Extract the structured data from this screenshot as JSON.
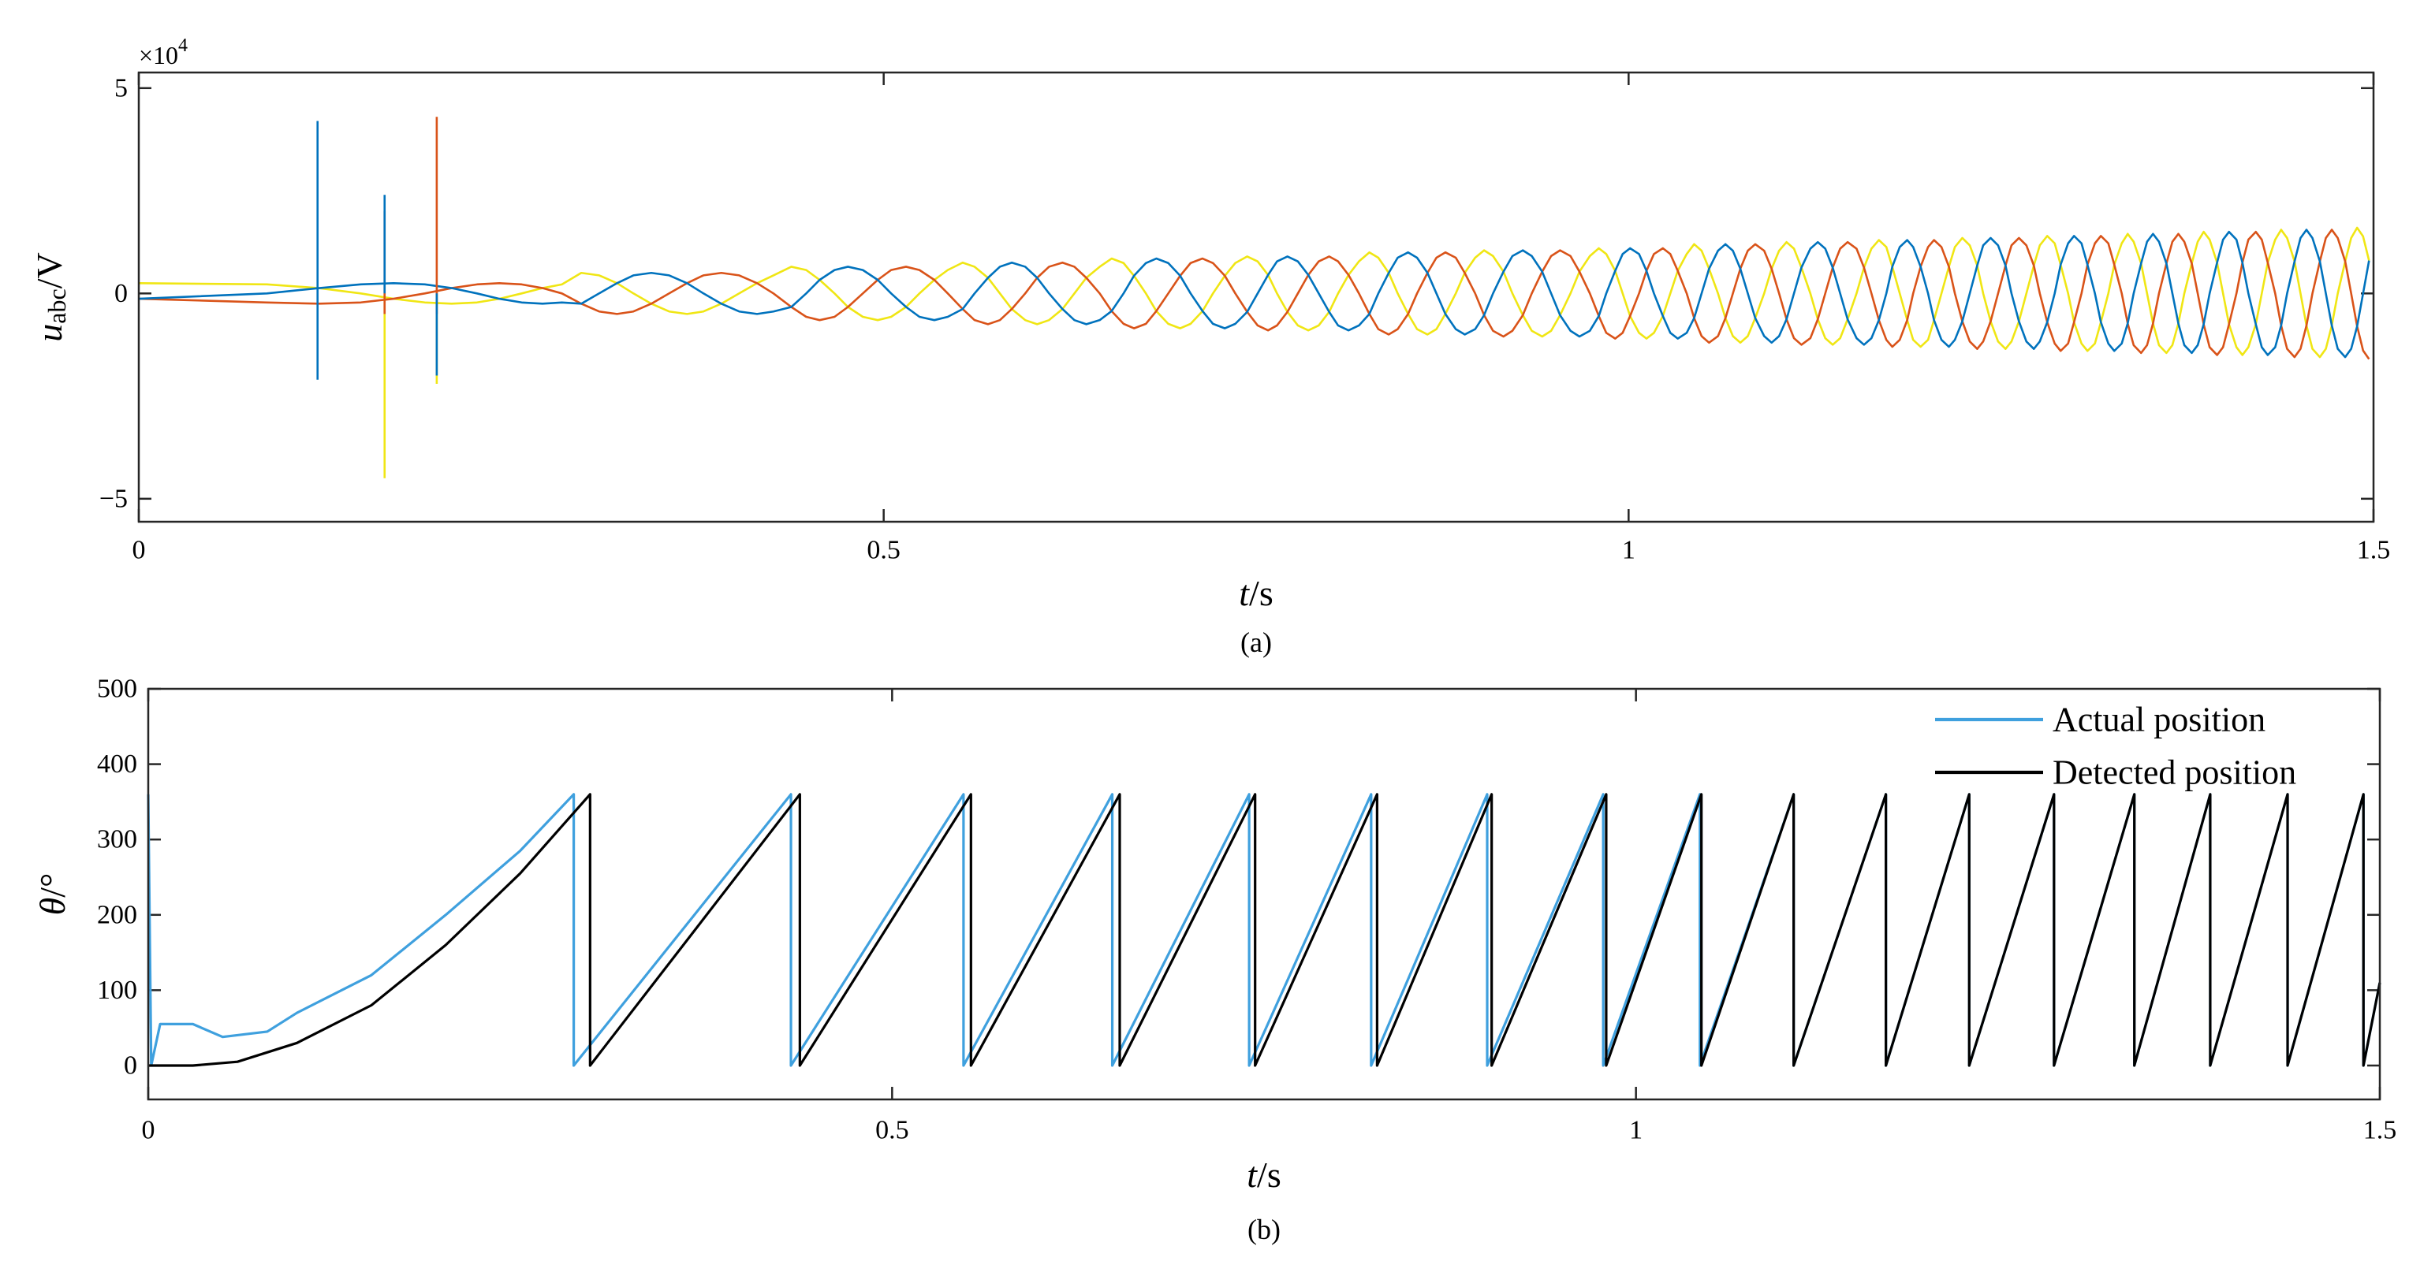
{
  "chart_data": [
    {
      "type": "line",
      "x": [
        0,
        0.086,
        0.121,
        0.149,
        0.171,
        0.192,
        0.21,
        0.227,
        0.242,
        0.257,
        0.271,
        0.284,
        0.297,
        0.309,
        0.321,
        0.332,
        0.344,
        0.356,
        0.368,
        0.379,
        0.391,
        0.403,
        0.415,
        0.426,
        0.438,
        0.448,
        0.457,
        0.467,
        0.476,
        0.486,
        0.496,
        0.505,
        0.515,
        0.524,
        0.534,
        0.543,
        0.553,
        0.561,
        0.57,
        0.578,
        0.586,
        0.595,
        0.603,
        0.611,
        0.62,
        0.628,
        0.636,
        0.645,
        0.653,
        0.661,
        0.668,
        0.676,
        0.683,
        0.691,
        0.699,
        0.706,
        0.714,
        0.721,
        0.729,
        0.736,
        0.744,
        0.751,
        0.758,
        0.764,
        0.771,
        0.778,
        0.785,
        0.792,
        0.799,
        0.805,
        0.812,
        0.819,
        0.826,
        0.832,
        0.839,
        0.845,
        0.852,
        0.858,
        0.865,
        0.871,
        0.877,
        0.884,
        0.89,
        0.897,
        0.903,
        0.909,
        0.916,
        0.922,
        0.929,
        0.935,
        0.942,
        0.948,
        0.954,
        0.961,
        0.967,
        0.974,
        0.98,
        0.985,
        0.991,
        0.996,
        1.001,
        1.007,
        1.012,
        1.017,
        1.023,
        1.028,
        1.033,
        1.039,
        1.044,
        1.049,
        1.054,
        1.06,
        1.065,
        1.07,
        1.075,
        1.08,
        1.085,
        1.091,
        1.096,
        1.101,
        1.106,
        1.111,
        1.116,
        1.122,
        1.127,
        1.132,
        1.137,
        1.142,
        1.147,
        1.153,
        1.158,
        1.163,
        1.168,
        1.173,
        1.177,
        1.182,
        1.187,
        1.191,
        1.196,
        1.201,
        1.205,
        1.21,
        1.215,
        1.219,
        1.224,
        1.229,
        1.234,
        1.238,
        1.243,
        1.248,
        1.253,
        1.257,
        1.262,
        1.267,
        1.272,
        1.276,
        1.281,
        1.286,
        1.29,
        1.295,
        1.299,
        1.304,
        1.308,
        1.313,
        1.317,
        1.322,
        1.326,
        1.331,
        1.335,
        1.339,
        1.344,
        1.348,
        1.352,
        1.356,
        1.361,
        1.365,
        1.369,
        1.373,
        1.378,
        1.382,
        1.386,
        1.39,
        1.395,
        1.399,
        1.403,
        1.408,
        1.412,
        1.416,
        1.421,
        1.425,
        1.429,
        1.434,
        1.438,
        1.442,
        1.447,
        1.451,
        1.455,
        1.459,
        1.464,
        1.468,
        1.472,
        1.476,
        1.481,
        1.485,
        1.489,
        1.493,
        1.497
      ],
      "xlim": [
        0,
        1.5
      ],
      "ylim": [
        -5.56,
        5.38
      ],
      "xticks": [
        0,
        0.5,
        1,
        1.5
      ],
      "yticks": [
        {
          "value": -5,
          "label": "−5"
        },
        0,
        5
      ],
      "y_multiplier": {
        "base": "×10",
        "exponent": "4"
      },
      "ylabel": {
        "symbol": "u",
        "subscript": "abc",
        "unit": "/V"
      },
      "xlabel": {
        "symbol": "t",
        "unit": "/s"
      },
      "caption": "(a)",
      "series": [
        {
          "color": "#f0e614",
          "values": [
            0.25,
            0.22,
            0.13,
            0,
            -0.13,
            -0.22,
            -0.25,
            -0.22,
            -0.13,
            0,
            0.13,
            0.22,
            0.5,
            0.44,
            0.25,
            0,
            -0.25,
            -0.44,
            -0.5,
            -0.44,
            -0.25,
            0,
            0.25,
            0.44,
            0.65,
            0.57,
            0.33,
            0,
            -0.33,
            -0.57,
            -0.65,
            -0.57,
            -0.33,
            0,
            0.33,
            0.57,
            0.75,
            0.65,
            0.38,
            0,
            -0.38,
            -0.65,
            -0.75,
            -0.65,
            -0.38,
            0,
            0.38,
            0.65,
            0.85,
            0.74,
            0.43,
            0,
            -0.43,
            -0.74,
            -0.85,
            -0.74,
            -0.43,
            0,
            0.43,
            0.74,
            0.9,
            0.78,
            0.45,
            0,
            -0.45,
            -0.78,
            -0.9,
            -0.78,
            -0.45,
            0,
            0.45,
            0.78,
            1,
            0.87,
            0.5,
            0,
            -0.5,
            -0.87,
            -1,
            -0.87,
            -0.5,
            0,
            0.5,
            0.87,
            1.05,
            0.91,
            0.53,
            0,
            -0.53,
            -0.91,
            -1.05,
            -0.91,
            -0.53,
            0,
            0.53,
            0.91,
            1.1,
            0.96,
            0.55,
            0,
            -0.55,
            -0.96,
            -1.1,
            -0.96,
            -0.55,
            0,
            0.55,
            0.96,
            1.2,
            1.04,
            0.6,
            0,
            -0.6,
            -1.04,
            -1.2,
            -1.04,
            -0.6,
            0,
            0.6,
            1.04,
            1.25,
            1.09,
            0.63,
            0,
            -0.63,
            -1.09,
            -1.25,
            -1.09,
            -0.63,
            0,
            0.63,
            1.09,
            1.3,
            1.13,
            0.65,
            0,
            -0.65,
            -1.13,
            -1.3,
            -1.13,
            -0.65,
            0,
            0.65,
            1.13,
            1.35,
            1.17,
            0.68,
            0,
            -0.68,
            -1.17,
            -1.35,
            -1.17,
            -0.68,
            0,
            0.68,
            1.17,
            1.4,
            1.22,
            0.7,
            0,
            -0.7,
            -1.22,
            -1.4,
            -1.22,
            -0.7,
            0,
            0.7,
            1.22,
            1.45,
            1.26,
            0.73,
            0,
            -0.73,
            -1.26,
            -1.45,
            -1.26,
            -0.73,
            0,
            0.73,
            1.26,
            1.5,
            1.31,
            0.75,
            0,
            -0.75,
            -1.31,
            -1.5,
            -1.31,
            -0.75,
            0,
            0.75,
            1.31,
            1.55,
            1.35,
            0.78,
            0,
            -0.78,
            -1.35,
            -1.55,
            -1.35,
            -0.78,
            0,
            0.78,
            1.35,
            1.6,
            1.39,
            0.8
          ]
        },
        {
          "color": "#d95319",
          "values": [
            -0.13,
            -0.22,
            -0.25,
            -0.22,
            -0.13,
            0,
            0.13,
            0.22,
            0.25,
            0.22,
            0.13,
            0,
            -0.25,
            -0.44,
            -0.5,
            -0.44,
            -0.25,
            0,
            0.25,
            0.44,
            0.5,
            0.44,
            0.25,
            0,
            -0.33,
            -0.57,
            -0.65,
            -0.57,
            -0.33,
            0,
            0.33,
            0.57,
            0.65,
            0.57,
            0.33,
            0,
            -0.38,
            -0.65,
            -0.75,
            -0.65,
            -0.38,
            0,
            0.38,
            0.65,
            0.75,
            0.65,
            0.38,
            0,
            -0.43,
            -0.74,
            -0.85,
            -0.74,
            -0.43,
            0,
            0.43,
            0.74,
            0.85,
            0.74,
            0.43,
            0,
            -0.45,
            -0.78,
            -0.9,
            -0.78,
            -0.45,
            0,
            0.45,
            0.78,
            0.9,
            0.78,
            0.45,
            0,
            -0.5,
            -0.87,
            -1,
            -0.87,
            -0.5,
            0,
            0.5,
            0.87,
            1,
            0.87,
            0.5,
            0,
            -0.53,
            -0.91,
            -1.05,
            -0.91,
            -0.53,
            0,
            0.53,
            0.91,
            1.05,
            0.91,
            0.53,
            0,
            -0.55,
            -0.96,
            -1.1,
            -0.96,
            -0.55,
            0,
            0.55,
            0.96,
            1.1,
            0.96,
            0.55,
            0,
            -0.6,
            -1.04,
            -1.2,
            -1.04,
            -0.6,
            0,
            0.6,
            1.04,
            1.2,
            1.04,
            0.6,
            0,
            -0.63,
            -1.09,
            -1.25,
            -1.09,
            -0.63,
            0,
            0.63,
            1.09,
            1.25,
            1.09,
            0.63,
            0,
            -0.65,
            -1.13,
            -1.3,
            -1.13,
            -0.65,
            0,
            0.65,
            1.13,
            1.3,
            1.13,
            0.65,
            0,
            -0.68,
            -1.17,
            -1.35,
            -1.17,
            -0.68,
            0,
            0.68,
            1.17,
            1.35,
            1.17,
            0.68,
            0,
            -0.7,
            -1.22,
            -1.4,
            -1.22,
            -0.7,
            0,
            0.7,
            1.22,
            1.4,
            1.22,
            0.7,
            0,
            -0.73,
            -1.26,
            -1.45,
            -1.26,
            -0.73,
            0,
            0.73,
            1.26,
            1.45,
            1.26,
            0.73,
            0,
            -0.75,
            -1.31,
            -1.5,
            -1.31,
            -0.75,
            0,
            0.75,
            1.31,
            1.5,
            1.31,
            0.75,
            0,
            -0.78,
            -1.35,
            -1.55,
            -1.35,
            -0.78,
            0,
            0.78,
            1.35,
            1.55,
            1.35,
            0.78,
            0,
            -0.8,
            -1.39,
            -1.6
          ]
        },
        {
          "color": "#0072bd",
          "values": [
            -0.13,
            0,
            0.13,
            0.22,
            0.25,
            0.22,
            0.13,
            0,
            -0.13,
            -0.22,
            -0.25,
            -0.22,
            -0.25,
            0,
            0.25,
            0.44,
            0.5,
            0.44,
            0.25,
            0,
            -0.25,
            -0.44,
            -0.5,
            -0.44,
            -0.33,
            0,
            0.33,
            0.57,
            0.65,
            0.57,
            0.33,
            0,
            -0.33,
            -0.57,
            -0.65,
            -0.57,
            -0.38,
            0,
            0.38,
            0.65,
            0.75,
            0.65,
            0.38,
            0,
            -0.38,
            -0.65,
            -0.75,
            -0.65,
            -0.43,
            0,
            0.43,
            0.74,
            0.85,
            0.74,
            0.43,
            0,
            -0.43,
            -0.74,
            -0.85,
            -0.74,
            -0.45,
            0,
            0.45,
            0.78,
            0.9,
            0.78,
            0.45,
            0,
            -0.45,
            -0.78,
            -0.9,
            -0.78,
            -0.5,
            0,
            0.5,
            0.87,
            1,
            0.87,
            0.5,
            0,
            -0.5,
            -0.87,
            -1,
            -0.87,
            -0.53,
            0,
            0.53,
            0.91,
            1.05,
            0.91,
            0.53,
            0,
            -0.53,
            -0.91,
            -1.05,
            -0.91,
            -0.55,
            0,
            0.55,
            0.96,
            1.1,
            0.96,
            0.55,
            0,
            -0.55,
            -0.96,
            -1.1,
            -0.96,
            -0.6,
            0,
            0.6,
            1.04,
            1.2,
            1.04,
            0.6,
            0,
            -0.6,
            -1.04,
            -1.2,
            -1.04,
            -0.63,
            0,
            0.63,
            1.09,
            1.25,
            1.09,
            0.63,
            0,
            -0.63,
            -1.09,
            -1.25,
            -1.09,
            -0.65,
            0,
            0.65,
            1.13,
            1.3,
            1.13,
            0.65,
            0,
            -0.65,
            -1.13,
            -1.3,
            -1.13,
            -0.68,
            0,
            0.68,
            1.17,
            1.35,
            1.17,
            0.68,
            0,
            -0.68,
            -1.17,
            -1.35,
            -1.17,
            -0.7,
            0,
            0.7,
            1.22,
            1.4,
            1.22,
            0.7,
            0,
            -0.7,
            -1.22,
            -1.4,
            -1.22,
            -0.73,
            0,
            0.73,
            1.26,
            1.45,
            1.26,
            0.73,
            0,
            -0.73,
            -1.26,
            -1.45,
            -1.26,
            -0.75,
            0,
            0.75,
            1.31,
            1.5,
            1.31,
            0.75,
            0,
            -0.75,
            -1.31,
            -1.5,
            -1.31,
            -0.78,
            0,
            0.78,
            1.35,
            1.55,
            1.35,
            0.78,
            0,
            -0.78,
            -1.35,
            -1.55,
            -1.35,
            -0.8,
            0,
            0.8
          ]
        },
        {
          "color": "#f0e614",
          "x": [
            0.165,
            0.165,
            null,
            0.2,
            0.2
          ],
          "values": [
            -4.5,
            0,
            null,
            -2.2,
            0
          ]
        },
        {
          "color": "#d95319",
          "x": [
            0.165,
            0.165,
            null,
            0.2,
            0.2
          ],
          "values": [
            -0.5,
            2.0,
            null,
            -0.5,
            4.3
          ]
        },
        {
          "color": "#0072bd",
          "x": [
            0.12,
            0.12,
            null,
            0.165,
            0.165,
            null,
            0.2,
            0.2
          ],
          "values": [
            -2.1,
            4.2,
            null,
            0,
            2.4,
            null,
            -2.0,
            0
          ]
        }
      ]
    },
    {
      "type": "line",
      "xlim": [
        0,
        1.5
      ],
      "ylim": [
        -45,
        500
      ],
      "xticks": [
        0,
        0.5,
        1,
        1.5
      ],
      "yticks": [
        0,
        100,
        200,
        300,
        400,
        500
      ],
      "ylabel": {
        "symbol": "θ",
        "unit": "/°"
      },
      "xlabel": {
        "symbol": "t",
        "unit": "/s"
      },
      "caption": "(b)",
      "legend": "northeast",
      "series": [
        {
          "name": "Actual position",
          "color": "#3fa0de",
          "x": [
            0,
            0.002,
            0.008,
            0.03,
            0.05,
            0.08,
            0.1,
            0.15,
            0.2,
            0.25,
            0.286,
            0.286,
            0.432,
            0.432,
            0.548,
            0.548,
            0.648,
            0.648,
            0.74,
            0.74,
            0.822,
            0.822,
            0.9,
            0.9,
            0.978,
            0.978,
            1.043,
            1.043,
            1.106,
            1.106,
            1.168,
            1.168,
            1.224,
            1.224,
            1.281,
            1.281,
            1.335,
            1.335,
            1.386,
            1.386,
            1.438,
            1.438,
            1.489,
            1.489,
            1.5
          ],
          "values": [
            360,
            0,
            55,
            55,
            38,
            45,
            70,
            120,
            200,
            285,
            360,
            0,
            360,
            0,
            360,
            0,
            360,
            0,
            360,
            0,
            360,
            0,
            360,
            0,
            360,
            0,
            360,
            0,
            360,
            0,
            360,
            0,
            360,
            0,
            360,
            0,
            360,
            0,
            360,
            0,
            360,
            0,
            360,
            0,
            110
          ]
        },
        {
          "name": "Detected position",
          "color": "#000000",
          "x": [
            0,
            0.03,
            0.06,
            0.1,
            0.15,
            0.2,
            0.25,
            0.297,
            0.297,
            0.438,
            0.438,
            0.553,
            0.553,
            0.653,
            0.653,
            0.744,
            0.744,
            0.826,
            0.826,
            0.903,
            0.903,
            0.98,
            0.98,
            1.044,
            1.044,
            1.106,
            1.106,
            1.168,
            1.168,
            1.224,
            1.224,
            1.281,
            1.281,
            1.335,
            1.335,
            1.386,
            1.386,
            1.438,
            1.438,
            1.489,
            1.489,
            1.5
          ],
          "values": [
            0,
            0,
            5,
            30,
            80,
            160,
            255,
            360,
            0,
            360,
            0,
            360,
            0,
            360,
            0,
            360,
            0,
            360,
            0,
            360,
            0,
            360,
            0,
            360,
            0,
            360,
            0,
            360,
            0,
            360,
            0,
            360,
            0,
            360,
            0,
            360,
            0,
            360,
            0,
            360,
            0,
            110
          ]
        }
      ]
    }
  ]
}
